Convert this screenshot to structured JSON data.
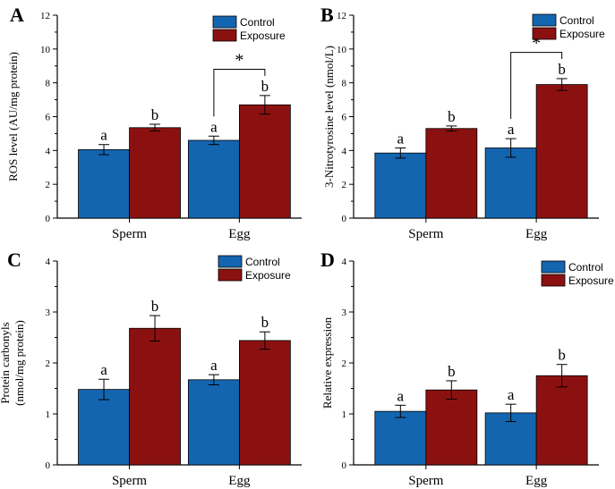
{
  "colors": {
    "control": "#1465b0",
    "exposure": "#8b1111"
  },
  "legend": [
    "Control",
    "Exposure"
  ],
  "chart_data": [
    {
      "panel": "A",
      "type": "bar",
      "ylabel": "ROS level (AU/mg protein)",
      "ylabel_lines": [],
      "categories": [
        "Sperm",
        "Egg"
      ],
      "ylim": [
        0,
        12
      ],
      "yticks": [
        "0",
        "2",
        "4",
        "6",
        "8",
        "10",
        "12"
      ],
      "series": [
        {
          "name": "Control",
          "values": [
            4.05,
            4.6
          ],
          "errors": [
            0.3,
            0.25
          ],
          "letters": [
            "a",
            "a"
          ]
        },
        {
          "name": "Exposure",
          "values": [
            5.35,
            6.7
          ],
          "errors": [
            0.2,
            0.55
          ],
          "letters": [
            "b",
            "b"
          ]
        }
      ],
      "significance": {
        "from": [
          0,
          1
        ],
        "to": [
          1,
          1
        ],
        "label": "*",
        "y": 8.8
      }
    },
    {
      "panel": "B",
      "type": "bar",
      "ylabel": "3-Nitrotyrosine level (nmol/L)",
      "ylabel_lines": [],
      "categories": [
        "Sperm",
        "Egg"
      ],
      "ylim": [
        0,
        12
      ],
      "yticks": [
        "0",
        "2",
        "4",
        "6",
        "8",
        "10",
        "12"
      ],
      "series": [
        {
          "name": "Control",
          "values": [
            3.85,
            4.15
          ],
          "errors": [
            0.3,
            0.55
          ],
          "letters": [
            "a",
            "a"
          ]
        },
        {
          "name": "Exposure",
          "values": [
            5.3,
            7.9
          ],
          "errors": [
            0.15,
            0.35
          ],
          "letters": [
            "b",
            "b"
          ]
        }
      ],
      "significance": {
        "from": [
          0,
          1
        ],
        "to": [
          1,
          1
        ],
        "label": "*",
        "y": 9.8
      }
    },
    {
      "panel": "C",
      "type": "bar",
      "ylabel": "",
      "ylabel_lines": [
        "Protein carbonyls",
        "(nmol/mg protein)"
      ],
      "categories": [
        "Sperm",
        "Egg"
      ],
      "ylim": [
        0,
        4
      ],
      "yticks": [
        "0",
        "1",
        "2",
        "3",
        "4"
      ],
      "series": [
        {
          "name": "Control",
          "values": [
            1.48,
            1.67
          ],
          "errors": [
            0.2,
            0.1
          ],
          "letters": [
            "a",
            "a"
          ]
        },
        {
          "name": "Exposure",
          "values": [
            2.68,
            2.44
          ],
          "errors": [
            0.25,
            0.17
          ],
          "letters": [
            "b",
            "b"
          ]
        }
      ],
      "significance": null
    },
    {
      "panel": "D",
      "type": "bar",
      "ylabel": "Relative expression",
      "ylabel_lines": [],
      "categories": [
        "Sperm",
        "Egg"
      ],
      "ylim": [
        0,
        4
      ],
      "yticks": [
        "0",
        "1",
        "2",
        "3",
        "4"
      ],
      "series": [
        {
          "name": "Control",
          "values": [
            1.05,
            1.02
          ],
          "errors": [
            0.12,
            0.17
          ],
          "letters": [
            "a",
            "a"
          ]
        },
        {
          "name": "Exposure",
          "values": [
            1.47,
            1.75
          ],
          "errors": [
            0.18,
            0.22
          ],
          "letters": [
            "b",
            "b"
          ]
        }
      ],
      "significance": null
    }
  ]
}
